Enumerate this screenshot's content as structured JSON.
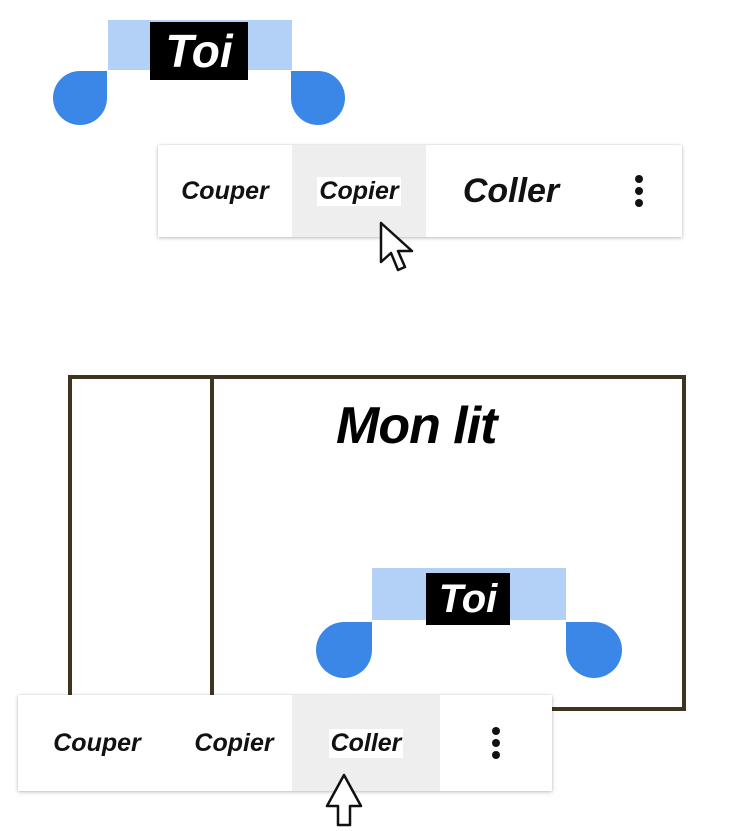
{
  "top_scene": {
    "selected_word": "Toi",
    "menu": {
      "items": [
        "Couper",
        "Copier",
        "Coller"
      ],
      "highlighted": "Copier",
      "more_icon": "more-vertical-icon"
    }
  },
  "bottom_scene": {
    "bed_label": "Mon lit",
    "selected_word": "Toi",
    "menu": {
      "items": [
        "Couper",
        "Copier",
        "Coller"
      ],
      "highlighted": "Coller",
      "more_icon": "more-vertical-icon"
    }
  },
  "colors": {
    "selection_band": "#b3d1f7",
    "handle": "#3b87e8",
    "highlight": "#eeeeee",
    "bed_frame": "#3e3420"
  }
}
